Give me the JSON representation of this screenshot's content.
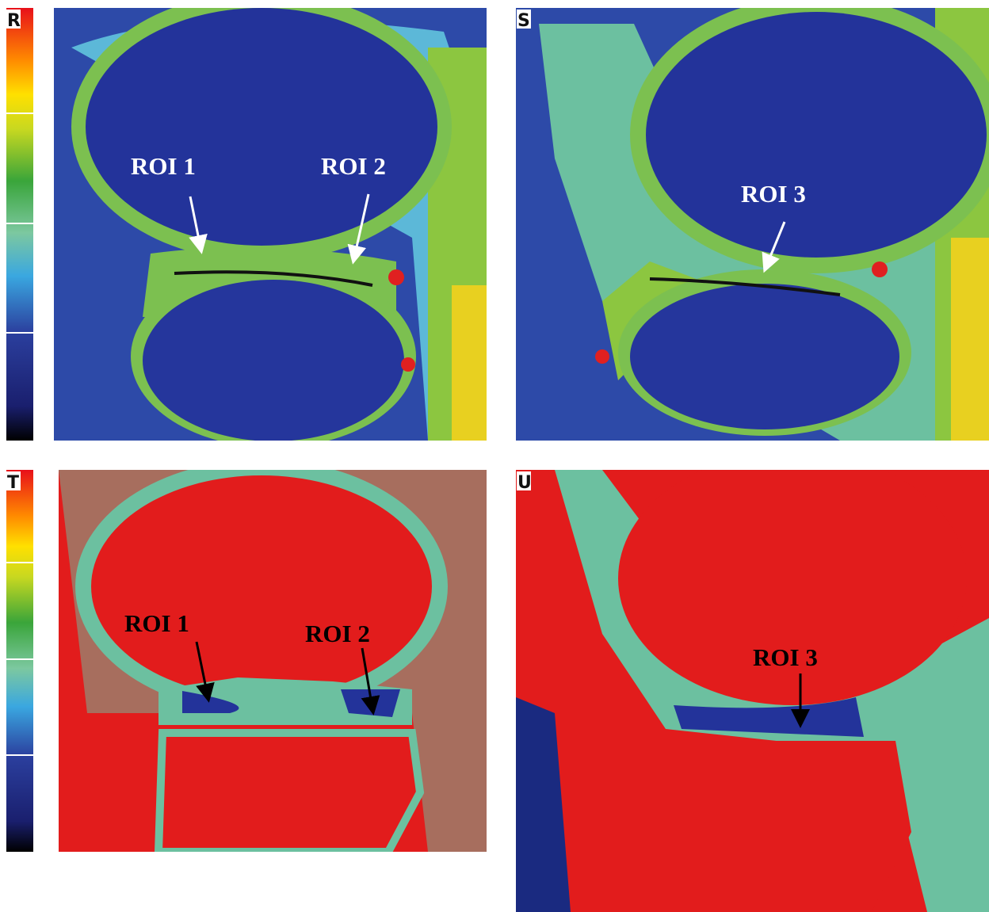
{
  "panels": [
    {
      "label": "R",
      "annotations": [
        "ROI 1",
        "ROI 2"
      ]
    },
    {
      "label": "S",
      "annotations": [
        "ROI 3"
      ]
    },
    {
      "label": "T",
      "annotations": [
        "ROI 1",
        "ROI 2"
      ]
    },
    {
      "label": "U",
      "annotations": [
        "ROI 3"
      ]
    }
  ]
}
